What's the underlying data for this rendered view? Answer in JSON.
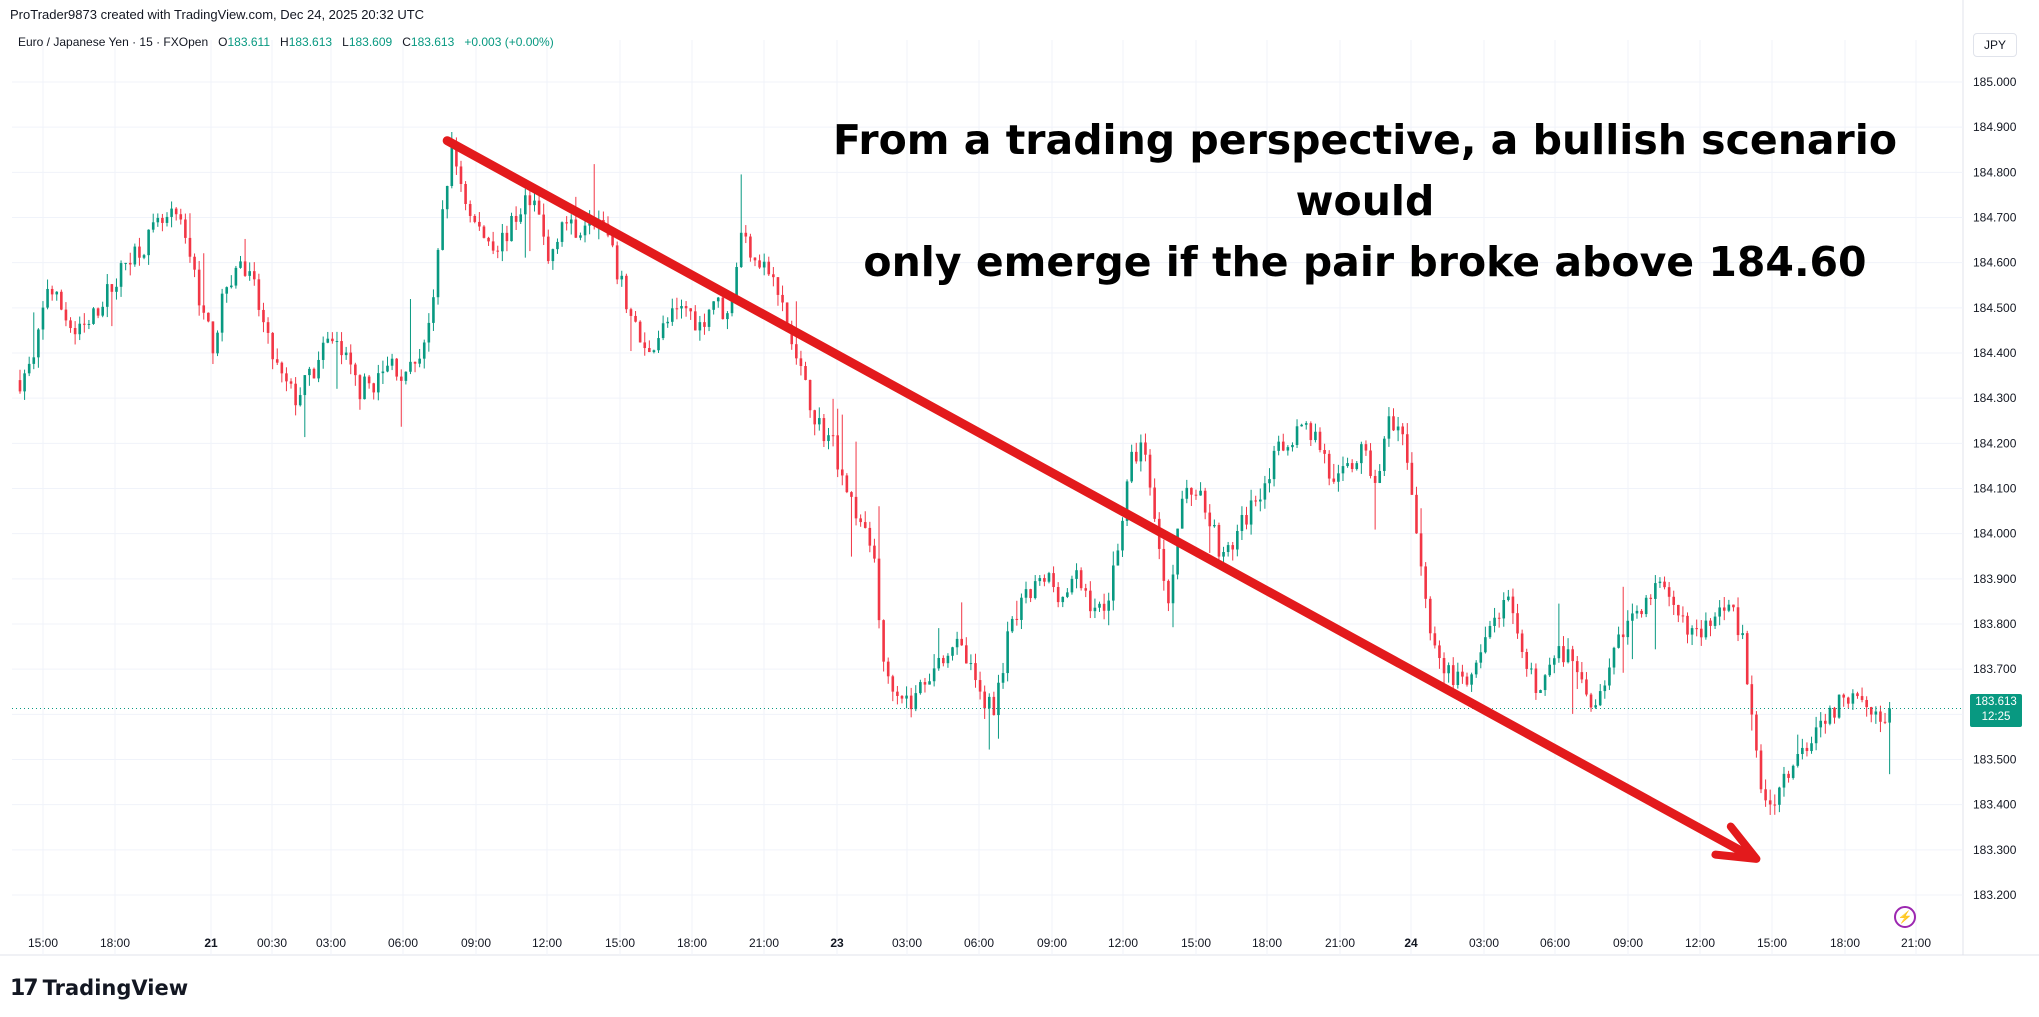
{
  "header": {
    "caption": "ProTrader9873 created with TradingView.com, Dec 24, 2025 20:32 UTC"
  },
  "legend": {
    "symbol": "Euro / Japanese Yen · 15 · FXOpen",
    "open_label": "O",
    "open": "183.611",
    "high_label": "H",
    "high": "183.613",
    "low_label": "L",
    "low": "183.609",
    "close_label": "C",
    "close": "183.613",
    "change": "+0.003 (+0.00%)"
  },
  "currency": "JPY",
  "price_tag": {
    "price": "183.613",
    "countdown": "12:25"
  },
  "annotation": {
    "line1": "From a trading perspective, a bullish scenario would",
    "line2": "only emerge if the pair broke above 184.60"
  },
  "footer": {
    "brand": "TradingView",
    "logo_icon": "tradingview-logo-icon"
  },
  "colors": {
    "up": "#089981",
    "down": "#f23645",
    "arrow": "#e31a1c",
    "grid": "#f0f3fa",
    "axis_text": "#131722"
  },
  "chart_data": {
    "type": "candlestick",
    "title": "",
    "symbol": "EURJPY",
    "interval": "15",
    "y_axis": {
      "ticks": [
        "185.000",
        "184.900",
        "184.800",
        "184.700",
        "184.600",
        "184.500",
        "184.400",
        "184.300",
        "184.200",
        "184.100",
        "184.000",
        "183.900",
        "183.800",
        "183.700",
        "183.500",
        "183.400",
        "183.300",
        "183.200"
      ],
      "ylim": [
        183.16,
        185.04
      ]
    },
    "x_axis": {
      "ticks": [
        "15:00",
        "18:00",
        "21",
        "00:30",
        "03:00",
        "06:00",
        "09:00",
        "12:00",
        "15:00",
        "18:00",
        "21:00",
        "23",
        "03:00",
        "06:00",
        "09:00",
        "12:00",
        "15:00",
        "18:00",
        "21:00",
        "24",
        "03:00",
        "06:00",
        "09:00",
        "12:00",
        "15:00",
        "18:00",
        "21:00"
      ],
      "bold_ticks": [
        "21",
        "23",
        "24"
      ]
    },
    "last_price": 183.613,
    "price_path": [
      [
        0,
        184.34
      ],
      [
        3,
        184.38
      ],
      [
        6,
        184.55
      ],
      [
        9,
        184.5
      ],
      [
        12,
        184.44
      ],
      [
        15,
        184.46
      ],
      [
        18,
        184.52
      ],
      [
        21,
        184.56
      ],
      [
        24,
        184.62
      ],
      [
        27,
        184.64
      ],
      [
        30,
        184.68
      ],
      [
        34,
        184.7
      ],
      [
        37,
        184.62
      ],
      [
        40,
        184.48
      ],
      [
        42,
        184.42
      ],
      [
        45,
        184.55
      ],
      [
        48,
        184.6
      ],
      [
        51,
        184.54
      ],
      [
        54,
        184.42
      ],
      [
        57,
        184.34
      ],
      [
        60,
        184.3
      ],
      [
        64,
        184.36
      ],
      [
        68,
        184.44
      ],
      [
        71,
        184.38
      ],
      [
        74,
        184.32
      ],
      [
        78,
        184.34
      ],
      [
        81,
        184.38
      ],
      [
        84,
        184.34
      ],
      [
        87,
        184.4
      ],
      [
        90,
        184.5
      ],
      [
        92,
        184.72
      ],
      [
        94,
        184.85
      ],
      [
        96,
        184.78
      ],
      [
        98,
        184.7
      ],
      [
        101,
        184.66
      ],
      [
        104,
        184.64
      ],
      [
        107,
        184.68
      ],
      [
        110,
        184.74
      ],
      [
        113,
        184.7
      ],
      [
        115,
        184.6
      ],
      [
        118,
        184.7
      ],
      [
        121,
        184.66
      ],
      [
        124,
        184.72
      ],
      [
        127,
        184.68
      ],
      [
        130,
        184.58
      ],
      [
        133,
        184.48
      ],
      [
        136,
        184.4
      ],
      [
        139,
        184.44
      ],
      [
        142,
        184.48
      ],
      [
        145,
        184.5
      ],
      [
        148,
        184.46
      ],
      [
        151,
        184.52
      ],
      [
        154,
        184.48
      ],
      [
        157,
        184.66
      ],
      [
        160,
        184.62
      ],
      [
        163,
        184.58
      ],
      [
        166,
        184.5
      ],
      [
        168,
        184.42
      ],
      [
        171,
        184.32
      ],
      [
        174,
        184.24
      ],
      [
        177,
        184.2
      ],
      [
        180,
        184.1
      ],
      [
        183,
        184.02
      ],
      [
        186,
        183.95
      ],
      [
        188,
        183.7
      ],
      [
        191,
        183.66
      ],
      [
        194,
        183.62
      ],
      [
        197,
        183.68
      ],
      [
        200,
        183.72
      ],
      [
        203,
        183.76
      ],
      [
        206,
        183.72
      ],
      [
        209,
        183.64
      ],
      [
        212,
        183.62
      ],
      [
        215,
        183.76
      ],
      [
        218,
        183.84
      ],
      [
        221,
        183.88
      ],
      [
        224,
        183.9
      ],
      [
        227,
        183.86
      ],
      [
        230,
        183.9
      ],
      [
        233,
        183.85
      ],
      [
        236,
        183.82
      ],
      [
        239,
        183.98
      ],
      [
        242,
        184.16
      ],
      [
        244,
        184.2
      ],
      [
        246,
        184.12
      ],
      [
        248,
        183.96
      ],
      [
        250,
        183.86
      ],
      [
        253,
        184.08
      ],
      [
        256,
        184.1
      ],
      [
        259,
        184.04
      ],
      [
        262,
        183.94
      ],
      [
        265,
        184.0
      ],
      [
        268,
        184.06
      ],
      [
        271,
        184.12
      ],
      [
        274,
        184.18
      ],
      [
        277,
        184.22
      ],
      [
        280,
        184.24
      ],
      [
        283,
        184.2
      ],
      [
        286,
        184.1
      ],
      [
        289,
        184.14
      ],
      [
        292,
        184.18
      ],
      [
        295,
        184.12
      ],
      [
        298,
        184.24
      ],
      [
        301,
        184.2
      ],
      [
        303,
        184.1
      ],
      [
        306,
        183.84
      ],
      [
        309,
        183.72
      ],
      [
        312,
        183.68
      ],
      [
        315,
        183.66
      ],
      [
        318,
        183.72
      ],
      [
        321,
        183.82
      ],
      [
        324,
        183.84
      ],
      [
        327,
        183.72
      ],
      [
        330,
        183.66
      ],
      [
        333,
        183.7
      ],
      [
        336,
        183.74
      ],
      [
        339,
        183.68
      ],
      [
        342,
        183.62
      ],
      [
        345,
        183.68
      ],
      [
        348,
        183.76
      ],
      [
        351,
        183.82
      ],
      [
        354,
        183.86
      ],
      [
        357,
        183.88
      ],
      [
        360,
        183.82
      ],
      [
        363,
        183.8
      ],
      [
        366,
        183.76
      ],
      [
        369,
        183.84
      ],
      [
        372,
        183.86
      ],
      [
        375,
        183.76
      ],
      [
        377,
        183.58
      ],
      [
        379,
        183.44
      ],
      [
        381,
        183.4
      ],
      [
        384,
        183.46
      ],
      [
        387,
        183.5
      ],
      [
        390,
        183.56
      ],
      [
        393,
        183.6
      ],
      [
        396,
        183.62
      ],
      [
        399,
        183.66
      ],
      [
        402,
        183.64
      ],
      [
        405,
        183.58
      ],
      [
        407,
        183.613
      ]
    ],
    "annotations": [
      {
        "type": "arrow",
        "from": {
          "bar": 93,
          "price": 184.87
        },
        "to": {
          "bar": 378,
          "price": 183.28
        }
      }
    ]
  }
}
